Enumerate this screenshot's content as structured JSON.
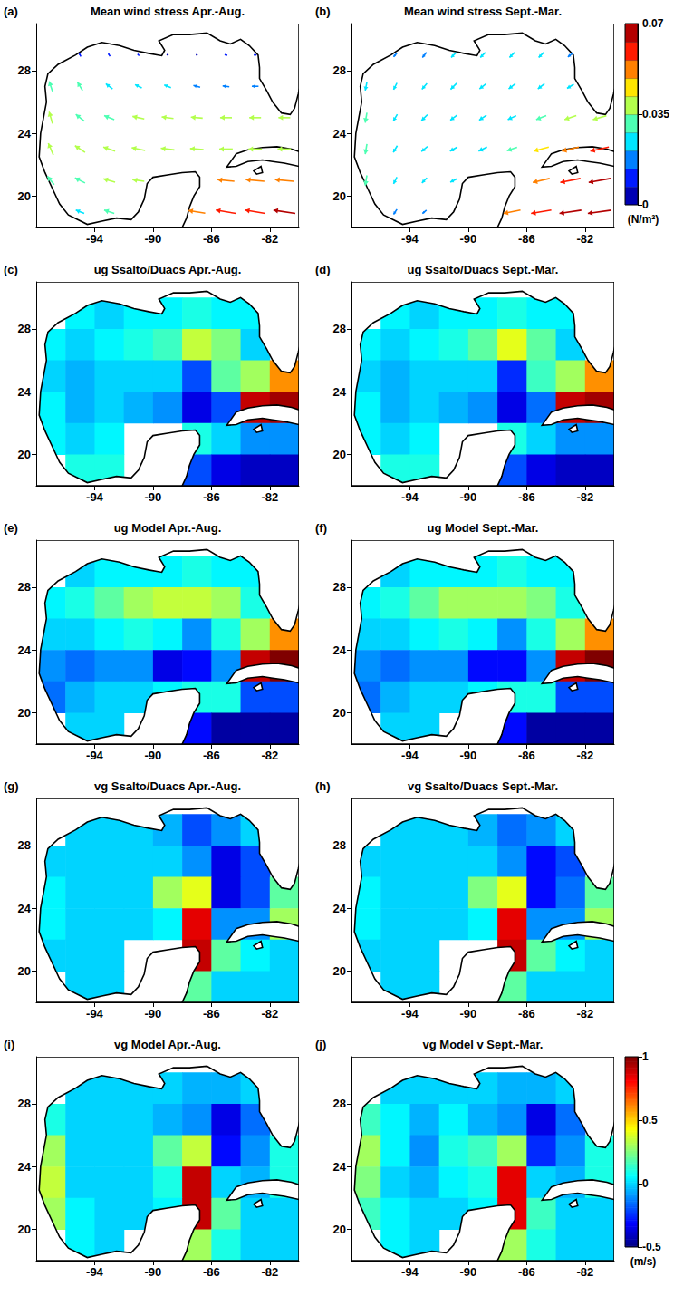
{
  "chart_data": [
    {
      "type": "vector",
      "panel": "(a)",
      "title": "Mean wind stress Apr.-Aug.",
      "xlim": [
        -98,
        -80
      ],
      "xticks": [
        -94,
        -90,
        -86,
        -82
      ],
      "ylim": [
        18,
        31
      ],
      "yticks": [
        20,
        24,
        28
      ],
      "x": [
        -97,
        -95,
        -93,
        -91,
        -89,
        -87,
        -85,
        -83,
        -81
      ],
      "y": [
        29,
        27,
        25,
        23,
        21,
        19
      ],
      "tau_x": [
        [
          null,
          -0.005,
          -0.005,
          -0.005,
          -0.005,
          -0.005,
          -0.008,
          -0.008,
          null
        ],
        [
          -0.01,
          -0.015,
          -0.02,
          -0.02,
          -0.02,
          -0.02,
          -0.02,
          -0.02,
          null
        ],
        [
          -0.01,
          -0.025,
          -0.03,
          -0.035,
          -0.035,
          -0.035,
          -0.035,
          -0.035,
          -0.035
        ],
        [
          -0.015,
          -0.03,
          -0.035,
          -0.04,
          -0.04,
          -0.04,
          -0.04,
          -0.04,
          -0.04
        ],
        [
          -0.02,
          -0.03,
          -0.035,
          -0.035,
          null,
          null,
          -0.05,
          -0.055,
          -0.055
        ],
        [
          null,
          -0.025,
          -0.03,
          null,
          null,
          -0.05,
          -0.06,
          -0.06,
          -0.065
        ]
      ],
      "tau_y": [
        [
          null,
          0.01,
          0.008,
          0.005,
          0.003,
          0.002,
          0.002,
          0.0,
          null
        ],
        [
          0.03,
          0.025,
          0.015,
          0.01,
          0.008,
          0.005,
          0.003,
          0.0,
          null
        ],
        [
          0.035,
          0.02,
          0.012,
          0.008,
          0.005,
          0.003,
          0.0,
          0.0,
          0.0
        ],
        [
          0.035,
          0.02,
          0.012,
          0.008,
          0.005,
          0.003,
          0.0,
          0.0,
          0.0
        ],
        [
          0.025,
          0.015,
          0.01,
          0.005,
          null,
          null,
          0.005,
          0.005,
          0.005
        ],
        [
          null,
          0.01,
          0.01,
          null,
          null,
          0.008,
          0.01,
          0.01,
          0.01
        ]
      ]
    },
    {
      "type": "vector",
      "panel": "(b)",
      "title": "Mean wind stress Sept.-Mar.",
      "xlim": [
        -98,
        -80
      ],
      "xticks": [
        -94,
        -90,
        -86,
        -82
      ],
      "ylim": [
        18,
        31
      ],
      "yticks": [
        20,
        24,
        28
      ],
      "x": [
        -97,
        -95,
        -93,
        -91,
        -89,
        -87,
        -85,
        -83,
        -81
      ],
      "y": [
        29,
        27,
        25,
        23,
        21,
        19
      ],
      "tau_x": [
        [
          null,
          -0.01,
          -0.012,
          -0.015,
          -0.015,
          -0.015,
          -0.015,
          -0.015,
          null
        ],
        [
          -0.005,
          -0.01,
          -0.015,
          -0.018,
          -0.02,
          -0.02,
          -0.02,
          -0.02,
          null
        ],
        [
          -0.005,
          -0.012,
          -0.018,
          -0.02,
          -0.022,
          -0.025,
          -0.03,
          -0.035,
          -0.04
        ],
        [
          -0.005,
          -0.012,
          -0.018,
          -0.022,
          -0.025,
          -0.03,
          -0.045,
          -0.05,
          -0.055
        ],
        [
          -0.005,
          -0.01,
          -0.015,
          -0.02,
          null,
          null,
          -0.05,
          -0.06,
          -0.065
        ],
        [
          null,
          -0.01,
          -0.012,
          null,
          null,
          -0.05,
          -0.06,
          -0.065,
          -0.07
        ]
      ],
      "tau_y": [
        [
          null,
          -0.012,
          -0.015,
          -0.015,
          -0.015,
          -0.015,
          -0.015,
          -0.012,
          null
        ],
        [
          -0.025,
          -0.02,
          -0.018,
          -0.018,
          -0.015,
          -0.015,
          -0.015,
          -0.012,
          null
        ],
        [
          -0.03,
          -0.02,
          -0.018,
          -0.015,
          -0.015,
          -0.012,
          -0.012,
          -0.012,
          -0.012
        ],
        [
          -0.03,
          -0.02,
          -0.015,
          -0.012,
          -0.012,
          -0.01,
          -0.012,
          -0.012,
          -0.012
        ],
        [
          -0.03,
          -0.02,
          -0.015,
          -0.01,
          null,
          null,
          -0.012,
          -0.012,
          -0.012
        ],
        [
          null,
          -0.015,
          -0.01,
          null,
          null,
          -0.01,
          -0.01,
          -0.01,
          -0.01
        ]
      ],
      "colorbar": {
        "range": [
          0,
          0.07
        ],
        "ticks": [
          0,
          0.035,
          0.07
        ],
        "label": "(N/m²)"
      }
    },
    {
      "type": "heatmap",
      "panel": "(c)",
      "title": "ug Ssalto/Duacs Apr.-Aug.",
      "xlim": [
        -98,
        -80
      ],
      "xticks": [
        -94,
        -90,
        -86,
        -82
      ],
      "ylim": [
        18,
        31
      ],
      "yticks": [
        20,
        24,
        28
      ],
      "x": [
        -97,
        -95,
        -93,
        -91,
        -89,
        -87,
        -85,
        -83,
        -81
      ],
      "y": [
        29,
        27,
        25,
        23,
        21,
        19
      ],
      "cells": [
        [
          null,
          0.05,
          0.0,
          0.05,
          0.05,
          0.1,
          0.05,
          0.05,
          null
        ],
        [
          0.05,
          0.0,
          0.05,
          0.1,
          0.15,
          0.35,
          0.25,
          0.0,
          null
        ],
        [
          0.0,
          -0.05,
          0.0,
          0.0,
          0.0,
          -0.2,
          0.2,
          0.3,
          0.6
        ],
        [
          0.05,
          -0.05,
          0.0,
          -0.05,
          -0.1,
          -0.35,
          -0.2,
          0.9,
          0.95
        ],
        [
          0.05,
          0.0,
          0.05,
          null,
          null,
          0.1,
          0.0,
          -0.1,
          -0.1
        ],
        [
          null,
          0.1,
          0.1,
          null,
          null,
          -0.2,
          -0.35,
          -0.4,
          -0.4
        ]
      ]
    },
    {
      "type": "heatmap",
      "panel": "(d)",
      "title": "ug Ssalto/Duacs Sept.-Mar.",
      "xlim": [
        -98,
        -80
      ],
      "xticks": [
        -94,
        -90,
        -86,
        -82
      ],
      "ylim": [
        18,
        31
      ],
      "yticks": [
        20,
        24,
        28
      ],
      "x": [
        -97,
        -95,
        -93,
        -91,
        -89,
        -87,
        -85,
        -83,
        -81
      ],
      "y": [
        29,
        27,
        25,
        23,
        21,
        19
      ],
      "cells": [
        [
          null,
          0.05,
          0.0,
          0.05,
          0.05,
          0.1,
          0.05,
          0.05,
          null
        ],
        [
          0.05,
          0.0,
          0.05,
          0.1,
          0.2,
          0.4,
          0.2,
          0.0,
          null
        ],
        [
          0.0,
          -0.05,
          0.0,
          0.0,
          0.0,
          -0.25,
          0.15,
          0.3,
          0.6
        ],
        [
          0.05,
          -0.05,
          0.0,
          -0.05,
          -0.1,
          -0.35,
          -0.15,
          0.9,
          0.95
        ],
        [
          0.05,
          0.0,
          0.05,
          null,
          null,
          0.1,
          0.0,
          -0.1,
          -0.1
        ],
        [
          null,
          0.1,
          0.1,
          null,
          null,
          -0.2,
          -0.35,
          -0.4,
          -0.4
        ]
      ]
    },
    {
      "type": "heatmap",
      "panel": "(e)",
      "title": "ug Model Apr.-Aug.",
      "xlim": [
        -98,
        -80
      ],
      "xticks": [
        -94,
        -90,
        -86,
        -82
      ],
      "ylim": [
        18,
        31
      ],
      "yticks": [
        20,
        24,
        28
      ],
      "x": [
        -97,
        -95,
        -93,
        -91,
        -89,
        -87,
        -85,
        -83,
        -81
      ],
      "y": [
        29,
        27,
        25,
        23,
        21,
        19
      ],
      "cells": [
        [
          null,
          0.0,
          0.05,
          0.05,
          0.05,
          0.1,
          0.05,
          0.05,
          null
        ],
        [
          0.05,
          0.1,
          0.2,
          0.3,
          0.35,
          0.35,
          0.3,
          0.1,
          null
        ],
        [
          0.0,
          0.0,
          0.05,
          0.1,
          0.05,
          -0.1,
          0.1,
          0.3,
          0.6
        ],
        [
          -0.1,
          -0.15,
          -0.1,
          -0.1,
          -0.35,
          -0.3,
          -0.1,
          0.9,
          1.0
        ],
        [
          -0.15,
          -0.05,
          0.0,
          0.0,
          0.05,
          0.1,
          0.1,
          -0.2,
          -0.2
        ],
        [
          null,
          0.0,
          0.0,
          null,
          null,
          -0.3,
          -0.45,
          -0.45,
          -0.45
        ]
      ]
    },
    {
      "type": "heatmap",
      "panel": "(f)",
      "title": "ug Model Sept.-Mar.",
      "xlim": [
        -98,
        -80
      ],
      "xticks": [
        -94,
        -90,
        -86,
        -82
      ],
      "ylim": [
        18,
        31
      ],
      "yticks": [
        20,
        24,
        28
      ],
      "x": [
        -97,
        -95,
        -93,
        -91,
        -89,
        -87,
        -85,
        -83,
        -81
      ],
      "y": [
        29,
        27,
        25,
        23,
        21,
        19
      ],
      "cells": [
        [
          null,
          0.0,
          0.05,
          0.05,
          0.05,
          0.1,
          0.05,
          0.05,
          null
        ],
        [
          0.05,
          0.1,
          0.2,
          0.3,
          0.3,
          0.3,
          0.25,
          0.1,
          null
        ],
        [
          0.0,
          0.0,
          0.05,
          0.1,
          0.05,
          -0.1,
          0.1,
          0.3,
          0.6
        ],
        [
          -0.1,
          -0.15,
          -0.1,
          -0.1,
          -0.3,
          -0.3,
          -0.1,
          0.9,
          1.0
        ],
        [
          -0.15,
          -0.05,
          0.0,
          0.0,
          0.05,
          0.1,
          0.1,
          -0.2,
          -0.2
        ],
        [
          null,
          0.0,
          0.0,
          null,
          null,
          -0.3,
          -0.45,
          -0.45,
          -0.45
        ]
      ]
    },
    {
      "type": "heatmap",
      "panel": "(g)",
      "title": "vg Ssalto/Duacs Apr.-Aug.",
      "xlim": [
        -98,
        -80
      ],
      "xticks": [
        -94,
        -90,
        -86,
        -82
      ],
      "ylim": [
        18,
        31
      ],
      "yticks": [
        20,
        24,
        28
      ],
      "x": [
        -97,
        -95,
        -93,
        -91,
        -89,
        -87,
        -85,
        -83,
        -81
      ],
      "y": [
        29,
        27,
        25,
        23,
        21,
        19
      ],
      "cells": [
        [
          null,
          0.0,
          0.0,
          0.0,
          -0.05,
          -0.2,
          -0.1,
          0.0,
          null
        ],
        [
          0.0,
          0.0,
          0.0,
          0.0,
          0.0,
          -0.1,
          -0.35,
          -0.2,
          null
        ],
        [
          0.05,
          0.0,
          0.0,
          0.0,
          0.3,
          0.4,
          -0.35,
          -0.2,
          0.2
        ],
        [
          0.05,
          0.0,
          0.0,
          0.0,
          0.05,
          0.85,
          -0.1,
          -0.1,
          0.3
        ],
        [
          0.0,
          0.0,
          0.0,
          null,
          null,
          0.9,
          0.2,
          0.05,
          0.0
        ],
        [
          null,
          0.0,
          0.0,
          null,
          null,
          0.2,
          0.0,
          0.0,
          0.0
        ]
      ]
    },
    {
      "type": "heatmap",
      "panel": "(h)",
      "title": "vg Ssalto/Duacs Sept.-Mar.",
      "xlim": [
        -98,
        -80
      ],
      "xticks": [
        -94,
        -90,
        -86,
        -82
      ],
      "ylim": [
        18,
        31
      ],
      "yticks": [
        20,
        24,
        28
      ],
      "x": [
        -97,
        -95,
        -93,
        -91,
        -89,
        -87,
        -85,
        -83,
        -81
      ],
      "y": [
        29,
        27,
        25,
        23,
        21,
        19
      ],
      "cells": [
        [
          null,
          0.0,
          0.0,
          0.0,
          -0.05,
          -0.15,
          -0.1,
          0.0,
          null
        ],
        [
          0.0,
          0.0,
          0.0,
          0.0,
          0.0,
          -0.1,
          -0.3,
          -0.2,
          null
        ],
        [
          0.05,
          0.0,
          0.0,
          0.0,
          0.25,
          0.4,
          -0.3,
          -0.15,
          0.2
        ],
        [
          0.05,
          0.0,
          0.0,
          0.0,
          0.05,
          0.85,
          -0.1,
          -0.1,
          0.3
        ],
        [
          0.0,
          0.0,
          0.0,
          null,
          null,
          0.9,
          0.2,
          0.05,
          0.0
        ],
        [
          null,
          0.0,
          0.0,
          null,
          null,
          0.2,
          0.0,
          0.0,
          0.0
        ]
      ]
    },
    {
      "type": "heatmap",
      "panel": "(i)",
      "title": "vg Model Apr.-Aug.",
      "xlim": [
        -98,
        -80
      ],
      "xticks": [
        -94,
        -90,
        -86,
        -82
      ],
      "ylim": [
        18,
        31
      ],
      "yticks": [
        20,
        24,
        28
      ],
      "x": [
        -97,
        -95,
        -93,
        -91,
        -89,
        -87,
        -85,
        -83,
        -81
      ],
      "y": [
        29,
        27,
        25,
        23,
        21,
        19
      ],
      "cells": [
        [
          null,
          0.0,
          0.0,
          0.0,
          0.0,
          -0.05,
          -0.05,
          0.0,
          null
        ],
        [
          0.1,
          0.0,
          0.0,
          0.0,
          -0.05,
          -0.1,
          -0.35,
          -0.15,
          null
        ],
        [
          0.3,
          0.0,
          0.0,
          0.0,
          0.2,
          0.35,
          -0.3,
          -0.1,
          0.1
        ],
        [
          0.35,
          0.0,
          0.0,
          0.0,
          0.1,
          0.9,
          0.0,
          -0.05,
          0.1
        ],
        [
          0.3,
          0.05,
          0.0,
          0.0,
          0.05,
          0.9,
          0.2,
          0.0,
          0.0
        ],
        [
          null,
          0.05,
          0.0,
          null,
          null,
          0.3,
          0.1,
          0.0,
          0.0
        ]
      ]
    },
    {
      "type": "heatmap",
      "panel": "(j)",
      "title": "vg Model v Sept.-Mar.",
      "xlim": [
        -98,
        -80
      ],
      "xticks": [
        -94,
        -90,
        -86,
        -82
      ],
      "ylim": [
        18,
        31
      ],
      "yticks": [
        20,
        24,
        28
      ],
      "x": [
        -97,
        -95,
        -93,
        -91,
        -89,
        -87,
        -85,
        -83,
        -81
      ],
      "y": [
        29,
        27,
        25,
        23,
        21,
        19
      ],
      "cells": [
        [
          null,
          0.0,
          0.0,
          0.0,
          0.0,
          -0.05,
          -0.05,
          0.0,
          null
        ],
        [
          0.15,
          0.05,
          -0.05,
          0.05,
          -0.05,
          -0.1,
          -0.35,
          -0.15,
          null
        ],
        [
          0.3,
          0.05,
          -0.1,
          0.1,
          0.15,
          0.3,
          -0.25,
          -0.1,
          0.1
        ],
        [
          0.25,
          0.0,
          -0.05,
          0.05,
          0.1,
          0.85,
          0.0,
          -0.05,
          0.1
        ],
        [
          0.15,
          0.05,
          0.0,
          0.0,
          0.05,
          0.85,
          0.15,
          0.0,
          0.0
        ],
        [
          null,
          0.05,
          0.0,
          null,
          null,
          0.3,
          0.1,
          0.0,
          0.0
        ]
      ],
      "colorbar": {
        "range": [
          -0.5,
          1
        ],
        "ticks": [
          -0.5,
          0,
          0.5,
          1
        ],
        "label": "(m/s)"
      }
    }
  ]
}
